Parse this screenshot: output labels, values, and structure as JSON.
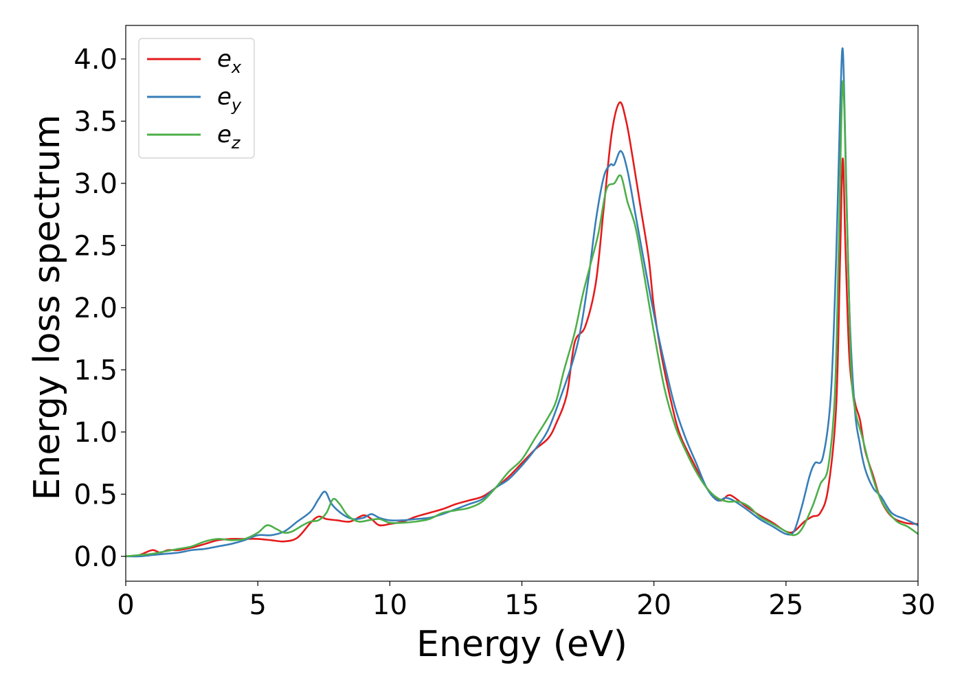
{
  "chart_data": {
    "type": "line",
    "xlabel": "Energy (eV)",
    "ylabel": "Energy loss spectrum",
    "xlim": [
      0,
      30
    ],
    "ylim": [
      -0.2,
      4.27
    ],
    "xticks": [
      0,
      5,
      10,
      15,
      20,
      25,
      30
    ],
    "yticks": [
      0.0,
      0.5,
      1.0,
      1.5,
      2.0,
      2.5,
      3.0,
      3.5,
      4.0
    ],
    "xtick_labels": [
      "0",
      "5",
      "10",
      "15",
      "20",
      "25",
      "30"
    ],
    "ytick_labels": [
      "0.0",
      "0.5",
      "1.0",
      "1.5",
      "2.0",
      "2.5",
      "3.0",
      "3.5",
      "4.0"
    ],
    "grid": false,
    "legend": "top-left",
    "series": [
      {
        "name": "e",
        "sub": "x",
        "color": "#e41a1c",
        "points": [
          [
            0,
            0
          ],
          [
            0.5,
            0.01
          ],
          [
            1.0,
            0.05
          ],
          [
            1.3,
            0.03
          ],
          [
            1.6,
            0.05
          ],
          [
            2.0,
            0.05
          ],
          [
            2.5,
            0.07
          ],
          [
            3.0,
            0.1
          ],
          [
            3.5,
            0.13
          ],
          [
            4.0,
            0.14
          ],
          [
            4.5,
            0.14
          ],
          [
            5.0,
            0.14
          ],
          [
            5.5,
            0.13
          ],
          [
            6.0,
            0.12
          ],
          [
            6.5,
            0.15
          ],
          [
            7.0,
            0.27
          ],
          [
            7.3,
            0.32
          ],
          [
            7.6,
            0.3
          ],
          [
            8.0,
            0.29
          ],
          [
            8.5,
            0.28
          ],
          [
            9.0,
            0.33
          ],
          [
            9.3,
            0.3
          ],
          [
            9.6,
            0.25
          ],
          [
            10.0,
            0.26
          ],
          [
            10.5,
            0.28
          ],
          [
            11.0,
            0.32
          ],
          [
            11.5,
            0.35
          ],
          [
            12.0,
            0.38
          ],
          [
            12.5,
            0.42
          ],
          [
            13.0,
            0.45
          ],
          [
            13.5,
            0.48
          ],
          [
            14.0,
            0.55
          ],
          [
            14.5,
            0.64
          ],
          [
            15.0,
            0.75
          ],
          [
            15.5,
            0.86
          ],
          [
            16.0,
            0.95
          ],
          [
            16.3,
            1.07
          ],
          [
            16.7,
            1.3
          ],
          [
            17.0,
            1.72
          ],
          [
            17.4,
            1.85
          ],
          [
            17.8,
            2.2
          ],
          [
            18.1,
            2.8
          ],
          [
            18.4,
            3.4
          ],
          [
            18.7,
            3.65
          ],
          [
            18.95,
            3.5
          ],
          [
            19.2,
            3.2
          ],
          [
            19.5,
            2.8
          ],
          [
            19.8,
            2.4
          ],
          [
            20.0,
            2.0
          ],
          [
            20.3,
            1.6
          ],
          [
            20.7,
            1.2
          ],
          [
            21.0,
            0.97
          ],
          [
            21.5,
            0.75
          ],
          [
            22.0,
            0.55
          ],
          [
            22.5,
            0.45
          ],
          [
            22.8,
            0.49
          ],
          [
            23.0,
            0.48
          ],
          [
            23.5,
            0.4
          ],
          [
            24.0,
            0.33
          ],
          [
            24.5,
            0.27
          ],
          [
            25.0,
            0.2
          ],
          [
            25.3,
            0.2
          ],
          [
            25.7,
            0.28
          ],
          [
            26.0,
            0.32
          ],
          [
            26.3,
            0.35
          ],
          [
            26.6,
            0.55
          ],
          [
            26.9,
            1.2
          ],
          [
            27.05,
            2.4
          ],
          [
            27.15,
            3.2
          ],
          [
            27.25,
            2.5
          ],
          [
            27.4,
            1.6
          ],
          [
            27.6,
            1.25
          ],
          [
            27.8,
            1.1
          ],
          [
            28.0,
            0.85
          ],
          [
            28.3,
            0.65
          ],
          [
            28.6,
            0.45
          ],
          [
            29.0,
            0.32
          ],
          [
            29.5,
            0.27
          ],
          [
            30.0,
            0.26
          ]
        ]
      },
      {
        "name": "e",
        "sub": "y",
        "color": "#377eb8",
        "points": [
          [
            0,
            0
          ],
          [
            0.5,
            0.0
          ],
          [
            1.0,
            0.01
          ],
          [
            1.5,
            0.02
          ],
          [
            2.0,
            0.03
          ],
          [
            2.5,
            0.05
          ],
          [
            3.0,
            0.06
          ],
          [
            3.5,
            0.08
          ],
          [
            4.0,
            0.1
          ],
          [
            4.5,
            0.13
          ],
          [
            5.0,
            0.17
          ],
          [
            5.5,
            0.17
          ],
          [
            6.0,
            0.2
          ],
          [
            6.5,
            0.28
          ],
          [
            7.0,
            0.36
          ],
          [
            7.3,
            0.46
          ],
          [
            7.55,
            0.52
          ],
          [
            7.8,
            0.42
          ],
          [
            8.2,
            0.34
          ],
          [
            8.6,
            0.3
          ],
          [
            9.0,
            0.31
          ],
          [
            9.3,
            0.34
          ],
          [
            9.6,
            0.31
          ],
          [
            10.0,
            0.29
          ],
          [
            10.5,
            0.29
          ],
          [
            11.0,
            0.3
          ],
          [
            11.5,
            0.31
          ],
          [
            12.0,
            0.34
          ],
          [
            12.5,
            0.38
          ],
          [
            13.0,
            0.42
          ],
          [
            13.5,
            0.46
          ],
          [
            14.0,
            0.55
          ],
          [
            14.5,
            0.62
          ],
          [
            15.0,
            0.73
          ],
          [
            15.5,
            0.86
          ],
          [
            16.0,
            1.02
          ],
          [
            16.5,
            1.3
          ],
          [
            16.9,
            1.55
          ],
          [
            17.2,
            1.8
          ],
          [
            17.5,
            2.2
          ],
          [
            17.8,
            2.7
          ],
          [
            18.1,
            3.05
          ],
          [
            18.35,
            3.15
          ],
          [
            18.5,
            3.15
          ],
          [
            18.75,
            3.26
          ],
          [
            19.0,
            3.1
          ],
          [
            19.3,
            2.75
          ],
          [
            19.6,
            2.4
          ],
          [
            20.0,
            1.95
          ],
          [
            20.4,
            1.55
          ],
          [
            20.8,
            1.2
          ],
          [
            21.2,
            0.95
          ],
          [
            21.6,
            0.75
          ],
          [
            22.0,
            0.55
          ],
          [
            22.4,
            0.45
          ],
          [
            22.7,
            0.47
          ],
          [
            23.0,
            0.45
          ],
          [
            23.5,
            0.38
          ],
          [
            24.0,
            0.3
          ],
          [
            24.5,
            0.24
          ],
          [
            25.0,
            0.18
          ],
          [
            25.3,
            0.2
          ],
          [
            25.6,
            0.4
          ],
          [
            25.9,
            0.65
          ],
          [
            26.1,
            0.75
          ],
          [
            26.4,
            0.8
          ],
          [
            26.7,
            1.3
          ],
          [
            26.9,
            2.4
          ],
          [
            27.05,
            3.6
          ],
          [
            27.15,
            4.08
          ],
          [
            27.25,
            3.3
          ],
          [
            27.4,
            2.0
          ],
          [
            27.6,
            1.2
          ],
          [
            27.8,
            0.9
          ],
          [
            28.0,
            0.7
          ],
          [
            28.3,
            0.55
          ],
          [
            28.6,
            0.48
          ],
          [
            29.0,
            0.35
          ],
          [
            29.5,
            0.3
          ],
          [
            30.0,
            0.25
          ]
        ]
      },
      {
        "name": "e",
        "sub": "z",
        "color": "#4daf4a",
        "points": [
          [
            0,
            0
          ],
          [
            0.5,
            0.01
          ],
          [
            1.0,
            0.02
          ],
          [
            1.5,
            0.04
          ],
          [
            2.0,
            0.06
          ],
          [
            2.5,
            0.08
          ],
          [
            3.0,
            0.12
          ],
          [
            3.5,
            0.14
          ],
          [
            4.0,
            0.13
          ],
          [
            4.5,
            0.14
          ],
          [
            5.0,
            0.19
          ],
          [
            5.35,
            0.25
          ],
          [
            5.7,
            0.22
          ],
          [
            6.0,
            0.19
          ],
          [
            6.3,
            0.2
          ],
          [
            6.7,
            0.25
          ],
          [
            7.0,
            0.28
          ],
          [
            7.3,
            0.29
          ],
          [
            7.6,
            0.35
          ],
          [
            7.85,
            0.46
          ],
          [
            8.1,
            0.42
          ],
          [
            8.4,
            0.33
          ],
          [
            8.8,
            0.28
          ],
          [
            9.2,
            0.29
          ],
          [
            9.6,
            0.3
          ],
          [
            10.0,
            0.27
          ],
          [
            10.5,
            0.27
          ],
          [
            11.0,
            0.28
          ],
          [
            11.5,
            0.3
          ],
          [
            12.0,
            0.35
          ],
          [
            12.5,
            0.37
          ],
          [
            13.0,
            0.39
          ],
          [
            13.5,
            0.44
          ],
          [
            14.0,
            0.55
          ],
          [
            14.5,
            0.68
          ],
          [
            15.0,
            0.78
          ],
          [
            15.5,
            0.95
          ],
          [
            16.0,
            1.12
          ],
          [
            16.3,
            1.25
          ],
          [
            16.6,
            1.5
          ],
          [
            17.0,
            1.8
          ],
          [
            17.3,
            2.1
          ],
          [
            17.6,
            2.35
          ],
          [
            17.9,
            2.6
          ],
          [
            18.2,
            2.95
          ],
          [
            18.5,
            3.0
          ],
          [
            18.75,
            3.06
          ],
          [
            19.0,
            2.85
          ],
          [
            19.3,
            2.65
          ],
          [
            19.6,
            2.3
          ],
          [
            20.0,
            1.8
          ],
          [
            20.4,
            1.35
          ],
          [
            20.8,
            1.05
          ],
          [
            21.2,
            0.85
          ],
          [
            21.6,
            0.68
          ],
          [
            22.0,
            0.55
          ],
          [
            22.4,
            0.47
          ],
          [
            22.8,
            0.44
          ],
          [
            23.2,
            0.44
          ],
          [
            23.6,
            0.4
          ],
          [
            24.0,
            0.32
          ],
          [
            24.5,
            0.26
          ],
          [
            25.0,
            0.2
          ],
          [
            25.3,
            0.17
          ],
          [
            25.6,
            0.22
          ],
          [
            26.0,
            0.4
          ],
          [
            26.3,
            0.58
          ],
          [
            26.6,
            0.72
          ],
          [
            26.85,
            1.3
          ],
          [
            27.0,
            2.5
          ],
          [
            27.15,
            3.82
          ],
          [
            27.3,
            2.8
          ],
          [
            27.45,
            1.6
          ],
          [
            27.6,
            1.2
          ],
          [
            27.9,
            0.95
          ],
          [
            28.2,
            0.7
          ],
          [
            28.5,
            0.5
          ],
          [
            28.8,
            0.38
          ],
          [
            29.2,
            0.28
          ],
          [
            29.6,
            0.24
          ],
          [
            30.0,
            0.18
          ]
        ]
      }
    ]
  }
}
